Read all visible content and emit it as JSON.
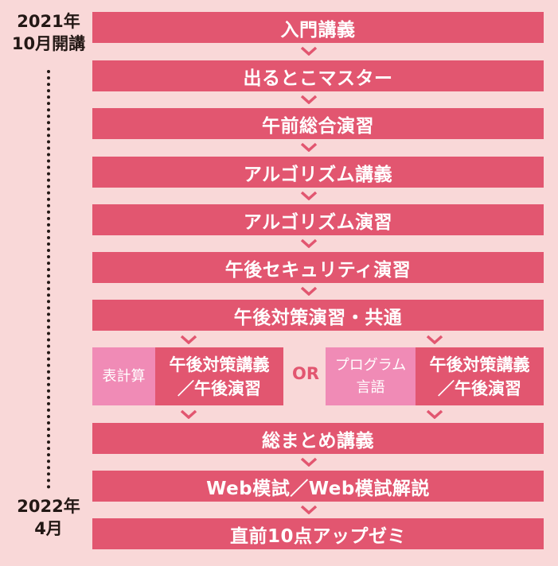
{
  "timeline": {
    "start_year": "2021年",
    "start_month": "10月開講",
    "end_year": "2022年",
    "end_month": "4月"
  },
  "steps": [
    "入門講義",
    "出るとこマスター",
    "午前総合演習",
    "アルゴリズム講義",
    "アルゴリズム演習",
    "午後セキュリティ演習",
    "午後対策演習・共通"
  ],
  "branch": {
    "left_tag": "表計算",
    "left_line1": "午後対策講義",
    "left_line2": "／午後演習",
    "or_label": "OR",
    "right_tag_line1": "プログラム",
    "right_tag_line2": "言語",
    "right_line1": "午後対策講義",
    "right_line2": "／午後演習"
  },
  "final_steps": [
    "総まとめ講義",
    "Web模試／Web模試解説",
    "直前10点アップゼミ"
  ],
  "colors": {
    "bar": "#e25670",
    "tag": "#f08bb6",
    "background": "#f9d8d8"
  }
}
